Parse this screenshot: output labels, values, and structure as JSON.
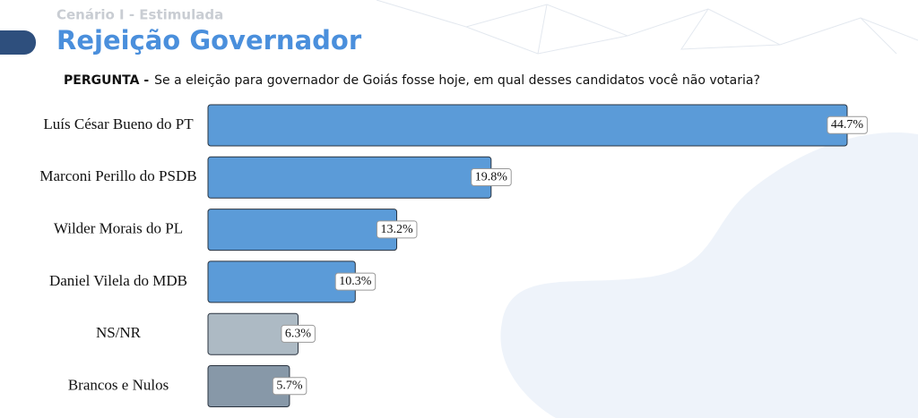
{
  "chart_data": {
    "type": "bar",
    "orientation": "horizontal",
    "subtitle": "Cenário I - Estimulada",
    "title": "Rejeição Governador",
    "question_label": "PERGUNTA -",
    "question": "Se a eleição para governador de Goiás fosse hoje, em qual desses candidatos você não votaria?",
    "categories": [
      "Luís César Bueno do PT",
      "Marconi Perillo do PSDB",
      "Wilder Morais do PL",
      "Daniel Vilela do MDB",
      "NS/NR",
      "Brancos e Nulos"
    ],
    "values": [
      44.7,
      19.8,
      13.2,
      10.3,
      6.3,
      5.7
    ],
    "value_labels": [
      "44.7%",
      "19.8%",
      "13.2%",
      "10.3%",
      "6.3%",
      "5.7%"
    ],
    "colors": [
      "#5b9bd8",
      "#5b9bd8",
      "#5b9bd8",
      "#5b9bd8",
      "#adbac4",
      "#8798a8"
    ]
  }
}
